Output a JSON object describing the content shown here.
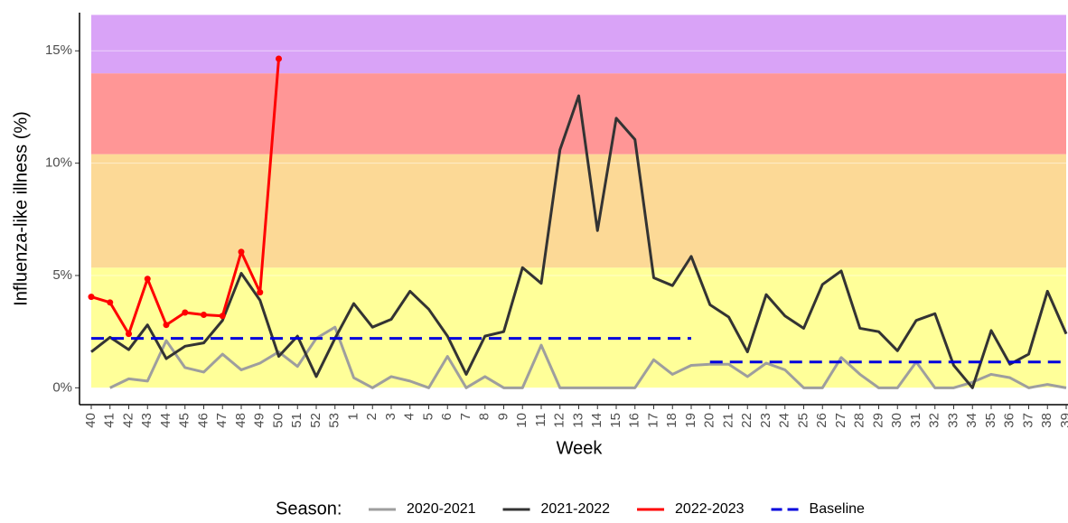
{
  "chart_data": {
    "type": "line",
    "x_label": "Week",
    "y_label": "Influenza-like illness (%)",
    "legend_title": "Season:",
    "legend": "bottom",
    "categories": [
      "40",
      "41",
      "42",
      "43",
      "44",
      "45",
      "46",
      "47",
      "48",
      "49",
      "50",
      "51",
      "52",
      "53",
      "1",
      "2",
      "3",
      "4",
      "5",
      "6",
      "7",
      "8",
      "9",
      "10",
      "11",
      "12",
      "13",
      "14",
      "15",
      "16",
      "17",
      "18",
      "19",
      "20",
      "21",
      "22",
      "23",
      "24",
      "25",
      "26",
      "27",
      "28",
      "29",
      "30",
      "31",
      "32",
      "33",
      "34",
      "35",
      "36",
      "37",
      "38",
      "39"
    ],
    "ylim": [
      -0.75,
      16.7
    ],
    "yticks": [
      {
        "value": 0,
        "label": "0%"
      },
      {
        "value": 5,
        "label": "5%"
      },
      {
        "value": 10,
        "label": "10%"
      },
      {
        "value": 15,
        "label": "15%"
      }
    ],
    "grid": true,
    "bands": [
      {
        "from": 0,
        "to": 5.35,
        "color": "#ffff99"
      },
      {
        "from": 5.35,
        "to": 10.4,
        "color": "#fcd996"
      },
      {
        "from": 10.4,
        "to": 14.0,
        "color": "#ff9696"
      },
      {
        "from": 14.0,
        "to": 16.6,
        "color": "#d9a3f7"
      }
    ],
    "series": [
      {
        "name": "2020-2021",
        "color": "#9e9e9e",
        "values": [
          null,
          0,
          0.4,
          0.3,
          2.1,
          0.9,
          0.7,
          1.5,
          0.8,
          1.1,
          1.6,
          0.95,
          2.2,
          2.7,
          0.45,
          0,
          0.5,
          0.3,
          0,
          1.4,
          0,
          0.5,
          0,
          0,
          1.9,
          0,
          0,
          0,
          0,
          0,
          1.25,
          0.6,
          1.0,
          1.05,
          1.05,
          0.5,
          1.1,
          0.8,
          0,
          0,
          1.35,
          0.6,
          0,
          0,
          1.15,
          0,
          0,
          0.25,
          0.6,
          0.45,
          0,
          0.15,
          0
        ]
      },
      {
        "name": "2021-2022",
        "color": "#333333",
        "values": [
          1.6,
          2.25,
          1.7,
          2.8,
          1.3,
          1.85,
          2.0,
          3.0,
          5.1,
          3.9,
          1.4,
          2.3,
          0.5,
          2.2,
          3.75,
          2.7,
          3.05,
          4.3,
          3.5,
          2.3,
          0.6,
          2.3,
          2.5,
          5.35,
          4.65,
          10.6,
          13.0,
          7.0,
          12.0,
          11.05,
          4.9,
          4.55,
          5.85,
          3.7,
          3.15,
          1.6,
          4.15,
          3.2,
          2.65,
          4.6,
          5.2,
          2.65,
          2.5,
          1.65,
          3.0,
          3.3,
          1.0,
          0,
          2.55,
          1.05,
          1.5,
          4.3,
          2.4
        ]
      },
      {
        "name": "2022-2023",
        "color": "#ff0000",
        "points": true,
        "values": [
          4.05,
          3.8,
          2.4,
          4.85,
          2.8,
          3.35,
          3.25,
          3.2,
          6.05,
          4.25,
          14.65,
          null,
          null,
          null,
          null,
          null,
          null,
          null,
          null,
          null,
          null,
          null,
          null,
          null,
          null,
          null,
          null,
          null,
          null,
          null,
          null,
          null,
          null,
          null,
          null,
          null,
          null,
          null,
          null,
          null,
          null,
          null,
          null,
          null,
          null,
          null,
          null,
          null,
          null,
          null,
          null,
          null,
          null
        ]
      },
      {
        "name": "Baseline",
        "color": "#0000dd",
        "dash": true,
        "values": [
          2.2,
          2.2,
          2.2,
          2.2,
          2.2,
          2.2,
          2.2,
          2.2,
          2.2,
          2.2,
          2.2,
          2.2,
          2.2,
          2.2,
          2.2,
          2.2,
          2.2,
          2.2,
          2.2,
          2.2,
          2.2,
          2.2,
          2.2,
          2.2,
          2.2,
          2.2,
          2.2,
          2.2,
          2.2,
          2.2,
          2.2,
          2.2,
          2.2,
          1.15,
          1.15,
          1.15,
          1.15,
          1.15,
          1.15,
          1.15,
          1.15,
          1.15,
          1.15,
          1.15,
          1.15,
          1.15,
          1.15,
          1.15,
          1.15,
          1.15,
          1.15,
          1.15,
          1.15
        ]
      }
    ]
  }
}
